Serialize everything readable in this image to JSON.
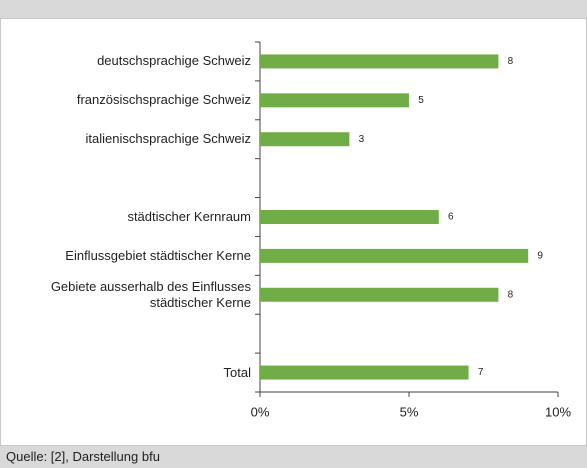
{
  "chart_data": {
    "type": "bar",
    "orientation": "horizontal",
    "categories": [
      "deutschsprachige Schweiz",
      "französischsprachige Schweiz",
      "italienischsprachige Schweiz",
      null,
      "städtischer Kernraum",
      "Einflussgebiet städtischer Kerne",
      "Gebiete ausserhalb des Einflusses\nstädtischer Kerne",
      null,
      "Total"
    ],
    "values": [
      8,
      5,
      3,
      null,
      6,
      9,
      8,
      null,
      7
    ],
    "color": "#70ad47",
    "xlim": [
      0,
      10
    ],
    "xticks": [
      {
        "value": 0,
        "label": "0%"
      },
      {
        "value": 5,
        "label": "5%"
      },
      {
        "value": 10,
        "label": "10%"
      }
    ],
    "source": "Quelle: [2], Darstellung bfu"
  }
}
